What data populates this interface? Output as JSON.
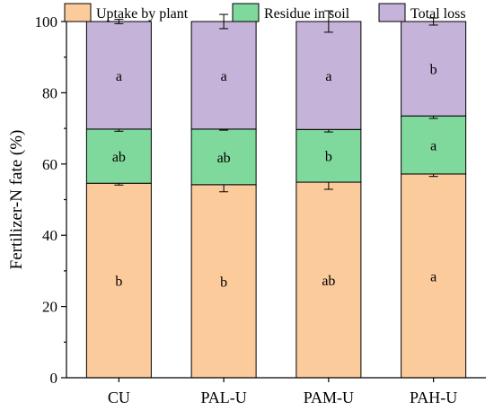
{
  "chart_data": {
    "type": "bar",
    "stacked": true,
    "categories": [
      "CU",
      "PAL-U",
      "PAM-U",
      "PAH-U"
    ],
    "ylabel": "Fertilizer-N fate (%)",
    "xlabel": "",
    "ylim": [
      0,
      100
    ],
    "yticks": [
      0,
      20,
      40,
      60,
      80,
      100
    ],
    "grid": false,
    "legend_position": "top",
    "series": [
      {
        "name": "Uptake by plant",
        "color": "#FCCB9C",
        "values": [
          54.6,
          54.2,
          54.9,
          57.2
        ],
        "errors": [
          0.5,
          2.0,
          2.0,
          0.7
        ],
        "letters": [
          "b",
          "b",
          "ab",
          "a"
        ]
      },
      {
        "name": "Residue in soil",
        "color": "#80D99C",
        "values": [
          15.2,
          15.6,
          14.8,
          16.3
        ],
        "errors": [
          0.6,
          0.3,
          0.7,
          0.7
        ],
        "letters": [
          "ab",
          "ab",
          "b",
          "a"
        ]
      },
      {
        "name": "Total loss",
        "color": "#C6B3D9",
        "values": [
          30.2,
          30.2,
          30.3,
          26.5
        ],
        "errors": [
          0.6,
          2.0,
          3.0,
          1.0
        ],
        "letters": [
          "a",
          "a",
          "a",
          "b"
        ]
      }
    ]
  }
}
